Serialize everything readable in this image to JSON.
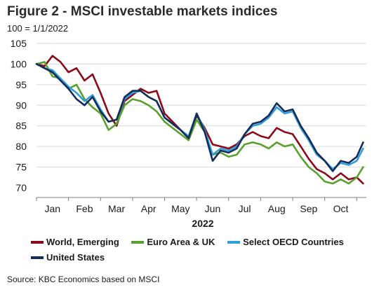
{
  "header": {
    "title": "Figure 2 - MSCI investable markets indices",
    "subtitle": "100 = 1/1/2022"
  },
  "footer": {
    "source": "Source: KBC Economics based on MSCI"
  },
  "colors": {
    "world_emerging": "#8b0a1a",
    "euro_area_uk": "#5aa02c",
    "select_oecd": "#2e9fd8",
    "united_states": "#142c5a"
  },
  "chart_data": {
    "type": "line",
    "title": "Figure 2 - MSCI investable markets indices",
    "subtitle": "100 = 1/1/2022",
    "xlabel": "2022",
    "ylabel": "",
    "ylim": [
      70,
      105
    ],
    "yticks": [
      70,
      75,
      80,
      85,
      90,
      95,
      100,
      105
    ],
    "xlim": [
      0,
      10.3
    ],
    "month_labels": [
      "Jan",
      "Feb",
      "Mar",
      "Apr",
      "May",
      "Jun",
      "Jul",
      "Aug",
      "Sep",
      "Oct"
    ],
    "grid": "horizontal",
    "legend_position": "bottom",
    "x_unit": "months since 1 Jan 2022",
    "x": [
      0.0,
      0.25,
      0.5,
      0.75,
      1.0,
      1.25,
      1.5,
      1.75,
      2.0,
      2.25,
      2.5,
      2.75,
      3.0,
      3.25,
      3.5,
      3.75,
      4.0,
      4.25,
      4.5,
      4.75,
      5.0,
      5.25,
      5.5,
      5.75,
      6.0,
      6.25,
      6.5,
      6.75,
      7.0,
      7.25,
      7.5,
      7.75,
      8.0,
      8.25,
      8.5,
      8.75,
      9.0,
      9.25,
      9.5,
      9.75,
      10.0,
      10.2
    ],
    "series": [
      {
        "name": "World, Emerging",
        "color": "#8b0a1a",
        "values": [
          100.0,
          99.5,
          102.0,
          100.5,
          98.0,
          99.0,
          96.0,
          97.5,
          93.0,
          88.0,
          85.0,
          91.0,
          92.5,
          94.0,
          93.0,
          93.5,
          88.0,
          86.0,
          84.0,
          82.0,
          87.5,
          84.5,
          80.5,
          80.0,
          79.5,
          80.5,
          82.5,
          83.5,
          82.5,
          82.0,
          84.5,
          83.5,
          83.0,
          80.0,
          77.0,
          74.5,
          73.5,
          72.0,
          73.5,
          72.0,
          72.5,
          71.0
        ]
      },
      {
        "name": "Euro Area & UK",
        "color": "#5aa02c",
        "values": [
          100.0,
          100.5,
          97.0,
          96.5,
          94.0,
          95.0,
          91.5,
          89.5,
          88.0,
          84.0,
          85.5,
          90.0,
          91.5,
          91.0,
          90.0,
          88.5,
          86.0,
          84.5,
          83.0,
          81.5,
          86.5,
          83.5,
          78.0,
          78.5,
          77.5,
          78.0,
          80.5,
          81.0,
          80.5,
          79.5,
          81.0,
          80.0,
          80.5,
          77.5,
          75.0,
          73.5,
          71.5,
          71.0,
          72.0,
          71.0,
          72.5,
          75.0
        ]
      },
      {
        "name": "Select OECD Countries",
        "color": "#2e9fd8",
        "values": [
          100.0,
          99.0,
          98.5,
          96.5,
          94.5,
          93.0,
          91.0,
          92.5,
          89.0,
          86.0,
          86.5,
          91.5,
          93.0,
          93.5,
          92.0,
          91.0,
          87.0,
          85.5,
          84.0,
          82.5,
          88.0,
          84.0,
          78.0,
          79.5,
          79.0,
          80.0,
          83.0,
          85.0,
          85.5,
          87.0,
          89.5,
          88.0,
          88.5,
          84.5,
          81.5,
          78.0,
          76.5,
          74.5,
          76.0,
          75.5,
          76.5,
          79.5
        ]
      },
      {
        "name": "United States",
        "color": "#142c5a",
        "values": [
          100.0,
          99.0,
          98.0,
          96.0,
          94.0,
          91.5,
          90.0,
          92.0,
          88.5,
          86.0,
          86.5,
          92.0,
          93.5,
          93.5,
          92.0,
          91.0,
          87.0,
          85.5,
          84.0,
          82.0,
          88.0,
          83.5,
          76.5,
          79.0,
          78.5,
          79.5,
          83.0,
          85.5,
          86.0,
          87.5,
          90.5,
          88.5,
          89.0,
          85.0,
          82.0,
          78.5,
          76.5,
          74.0,
          76.5,
          76.0,
          77.5,
          81.0
        ]
      }
    ]
  }
}
